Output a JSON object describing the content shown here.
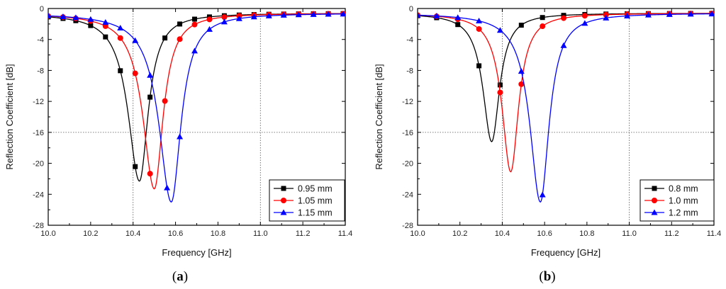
{
  "figure": {
    "captions": [
      "(a)",
      "(b)"
    ]
  },
  "chart_data": [
    {
      "type": "line",
      "panel": "(a)",
      "xlabel": "Frequency [GHz]",
      "ylabel": "Reflection Coefficient [dB]",
      "xlim": [
        10.0,
        11.4
      ],
      "ylim": [
        -28,
        0
      ],
      "xticks": [
        10.0,
        10.2,
        10.4,
        10.6,
        10.8,
        11.0,
        11.2,
        11.4
      ],
      "xtick_labels": [
        "10.0",
        "10.2",
        "10.4",
        "10.6",
        "10.8",
        "11.0",
        "11.2",
        "11.4"
      ],
      "yticks": [
        0,
        -4,
        -8,
        -12,
        -16,
        -20,
        -24,
        -28
      ],
      "ytick_labels": [
        "0",
        "-4",
        "-8",
        "-12",
        "-16",
        "-20",
        "-24",
        "-28"
      ],
      "grid_x": [
        10.4,
        11.0
      ],
      "grid_y": [
        -16
      ],
      "legend_position": "bottom-right",
      "series": [
        {
          "name": "0.95 mm",
          "color": "#000000",
          "marker": "square",
          "f0": 10.43,
          "min": -22.3,
          "wl": 0.065,
          "wr": 0.05,
          "markers_x": [
            10.0,
            10.07,
            10.13,
            10.2,
            10.27,
            10.34,
            10.41,
            10.48,
            10.55,
            10.62,
            10.69,
            10.76,
            10.83,
            10.9,
            10.97,
            11.04,
            11.11,
            11.18,
            11.25,
            11.32,
            11.39
          ]
        },
        {
          "name": "1.05 mm",
          "color": "#ff0000",
          "marker": "circle",
          "f0": 10.5,
          "min": -23.3,
          "wl": 0.065,
          "wr": 0.05,
          "markers_x": [
            10.0,
            10.07,
            10.13,
            10.2,
            10.27,
            10.34,
            10.41,
            10.48,
            10.55,
            10.62,
            10.69,
            10.76,
            10.83,
            10.9,
            10.97,
            11.04,
            11.11,
            11.18,
            11.25,
            11.32,
            11.39
          ]
        },
        {
          "name": "1.15 mm",
          "color": "#0000ff",
          "marker": "triangle",
          "f0": 10.58,
          "min": -25.0,
          "wl": 0.07,
          "wr": 0.055,
          "markers_x": [
            10.0,
            10.07,
            10.13,
            10.2,
            10.27,
            10.34,
            10.41,
            10.48,
            10.56,
            10.62,
            10.69,
            10.76,
            10.83,
            10.9,
            10.97,
            11.04,
            11.11,
            11.18,
            11.25,
            11.32,
            11.39
          ]
        }
      ]
    },
    {
      "type": "line",
      "panel": "(b)",
      "xlabel": "Frequency [GHz]",
      "ylabel": "Reflection Coefficient [dB]",
      "xlim": [
        10.0,
        11.4
      ],
      "ylim": [
        -28,
        0
      ],
      "xticks": [
        10.0,
        10.2,
        10.4,
        10.6,
        10.8,
        11.0,
        11.2,
        11.4
      ],
      "xtick_labels": [
        "10.0",
        "10.2",
        "10.4",
        "10.6",
        "10.8",
        "11.0",
        "11.2",
        "11.4"
      ],
      "yticks": [
        0,
        -4,
        -8,
        -12,
        -16,
        -20,
        -24,
        -28
      ],
      "ytick_labels": [
        "0",
        "-4",
        "-8",
        "-12",
        "-16",
        "-20",
        "-24",
        "-28"
      ],
      "grid_x": [
        10.4,
        11.0
      ],
      "grid_y": [
        -16
      ],
      "legend_position": "bottom-right",
      "series": [
        {
          "name": "0.8 mm",
          "color": "#000000",
          "marker": "square",
          "f0": 10.35,
          "min": -17.2,
          "wl": 0.05,
          "wr": 0.045,
          "markers_x": [
            10.0,
            10.09,
            10.19,
            10.29,
            10.39,
            10.49,
            10.59,
            10.69,
            10.79,
            10.89,
            10.99,
            11.09,
            11.19,
            11.29,
            11.39
          ]
        },
        {
          "name": "1.0 mm",
          "color": "#ff0000",
          "marker": "circle",
          "f0": 10.44,
          "min": -21.1,
          "wl": 0.05,
          "wr": 0.045,
          "markers_x": [
            10.0,
            10.09,
            10.19,
            10.29,
            10.39,
            10.49,
            10.59,
            10.69,
            10.79,
            10.89,
            10.99,
            11.09,
            11.19,
            11.29,
            11.39
          ]
        },
        {
          "name": "1.2 mm",
          "color": "#0000ff",
          "marker": "triangle",
          "f0": 10.58,
          "min": -25.0,
          "wl": 0.06,
          "wr": 0.05,
          "markers_x": [
            10.0,
            10.09,
            10.19,
            10.29,
            10.39,
            10.49,
            10.59,
            10.69,
            10.79,
            10.89,
            10.99,
            11.09,
            11.19,
            11.29,
            11.39
          ]
        }
      ]
    }
  ]
}
